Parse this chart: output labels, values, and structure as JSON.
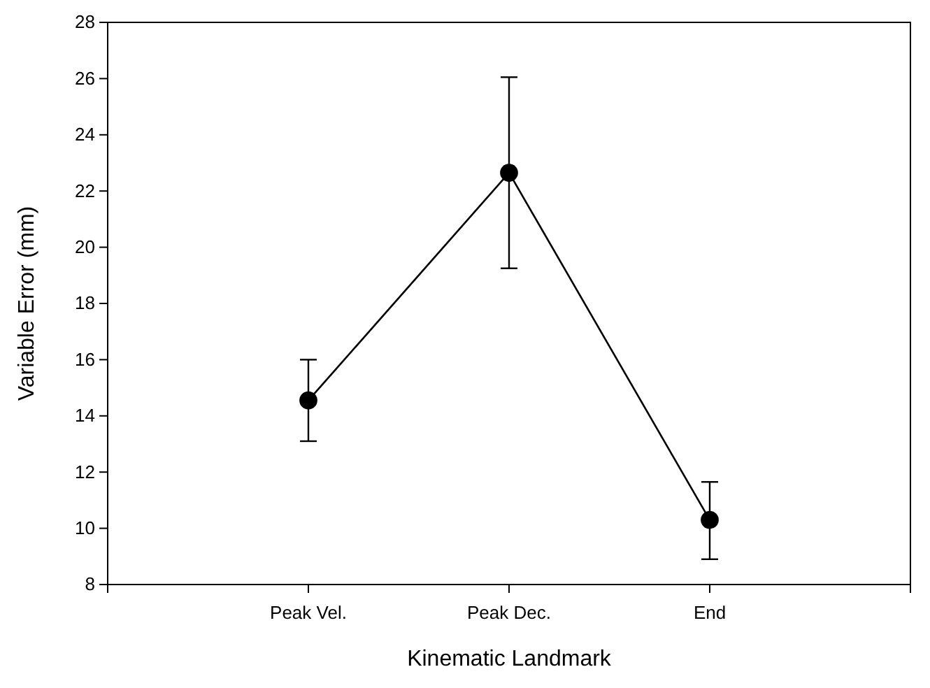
{
  "chart_data": {
    "type": "line",
    "xlabel": "Kinematic Landmark",
    "ylabel": "Variable Error (mm)",
    "categories": [
      "Peak Vel.",
      "Peak Dec.",
      "End"
    ],
    "series": [
      {
        "color": "#000000",
        "values": [
          14.55,
          22.65,
          10.3
        ],
        "errors": [
          [
            13.1,
            16.0
          ],
          [
            19.25,
            26.05
          ],
          [
            8.9,
            11.65
          ]
        ]
      }
    ],
    "ylim": [
      8,
      28
    ],
    "yticks": [
      8,
      10,
      12,
      14,
      16,
      18,
      20,
      22,
      24,
      26,
      28
    ],
    "marker": "circle",
    "line_style": "solid"
  }
}
